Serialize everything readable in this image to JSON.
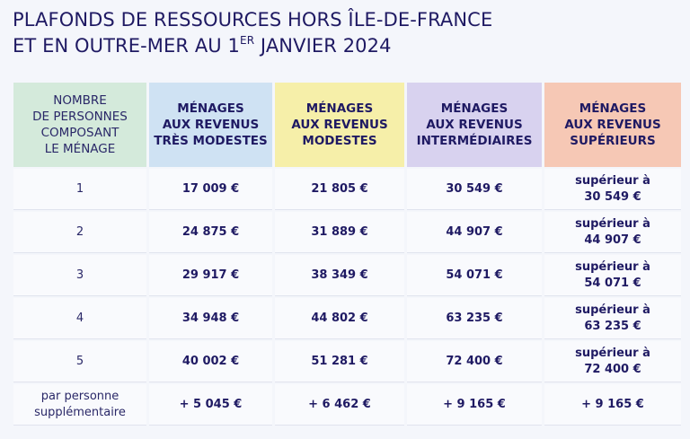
{
  "title": {
    "line1": "PLAFONDS DE RESSOURCES HORS ÎLE-DE-FRANCE",
    "line2_pre": "ET EN OUTRE-MER AU 1",
    "line2_sup": "ER",
    "line2_post": " JANVIER 2024"
  },
  "headers": [
    {
      "line1": "NOMBRE",
      "line2": "DE PERSONNES",
      "line3": "COMPOSANT",
      "line4": "LE MÉNAGE"
    },
    {
      "line1": "MÉNAGES",
      "line2": "AUX REVENUS",
      "line3": "TRÈS MODESTES"
    },
    {
      "line1": "MÉNAGES",
      "line2": "AUX REVENUS",
      "line3": "MODESTES"
    },
    {
      "line1": "MÉNAGES",
      "line2": "AUX REVENUS",
      "line3": "INTERMÉDIAIRES"
    },
    {
      "line1": "MÉNAGES",
      "line2": "AUX REVENUS",
      "line3": "SUPÉRIEURS"
    }
  ],
  "superior_prefix": "supérieur à",
  "rows": [
    {
      "persons": "1",
      "tres_modestes": "17 009 €",
      "modestes": "21 805 €",
      "intermediaires": "30 549 €",
      "superieurs": "30 549 €"
    },
    {
      "persons": "2",
      "tres_modestes": "24 875 €",
      "modestes": "31 889 €",
      "intermediaires": "44 907 €",
      "superieurs": "44 907 €"
    },
    {
      "persons": "3",
      "tres_modestes": "29 917 €",
      "modestes": "38 349 €",
      "intermediaires": "54 071 €",
      "superieurs": "54 071 €"
    },
    {
      "persons": "4",
      "tres_modestes": "34 948 €",
      "modestes": "44 802 €",
      "intermediaires": "63 235 €",
      "superieurs": "63 235 €"
    },
    {
      "persons": "5",
      "tres_modestes": "40 002 €",
      "modestes": "51 281 €",
      "intermediaires": "72 400 €",
      "superieurs": "72 400 €"
    }
  ],
  "extra_row": {
    "label_line1": "par personne",
    "label_line2": "supplémentaire",
    "tres_modestes": "+ 5 045 €",
    "modestes": "+ 6 462 €",
    "intermediaires": "+ 9 165 €",
    "superieurs": "+ 9 165 €"
  },
  "colors": {
    "title": "#1f1a63",
    "header_persons": "#d4eadb",
    "header_tres_modestes": "#cfe2f3",
    "header_modestes": "#f6efa9",
    "header_intermediaires": "#d8d2ef",
    "header_superieurs": "#f6c8b5"
  }
}
